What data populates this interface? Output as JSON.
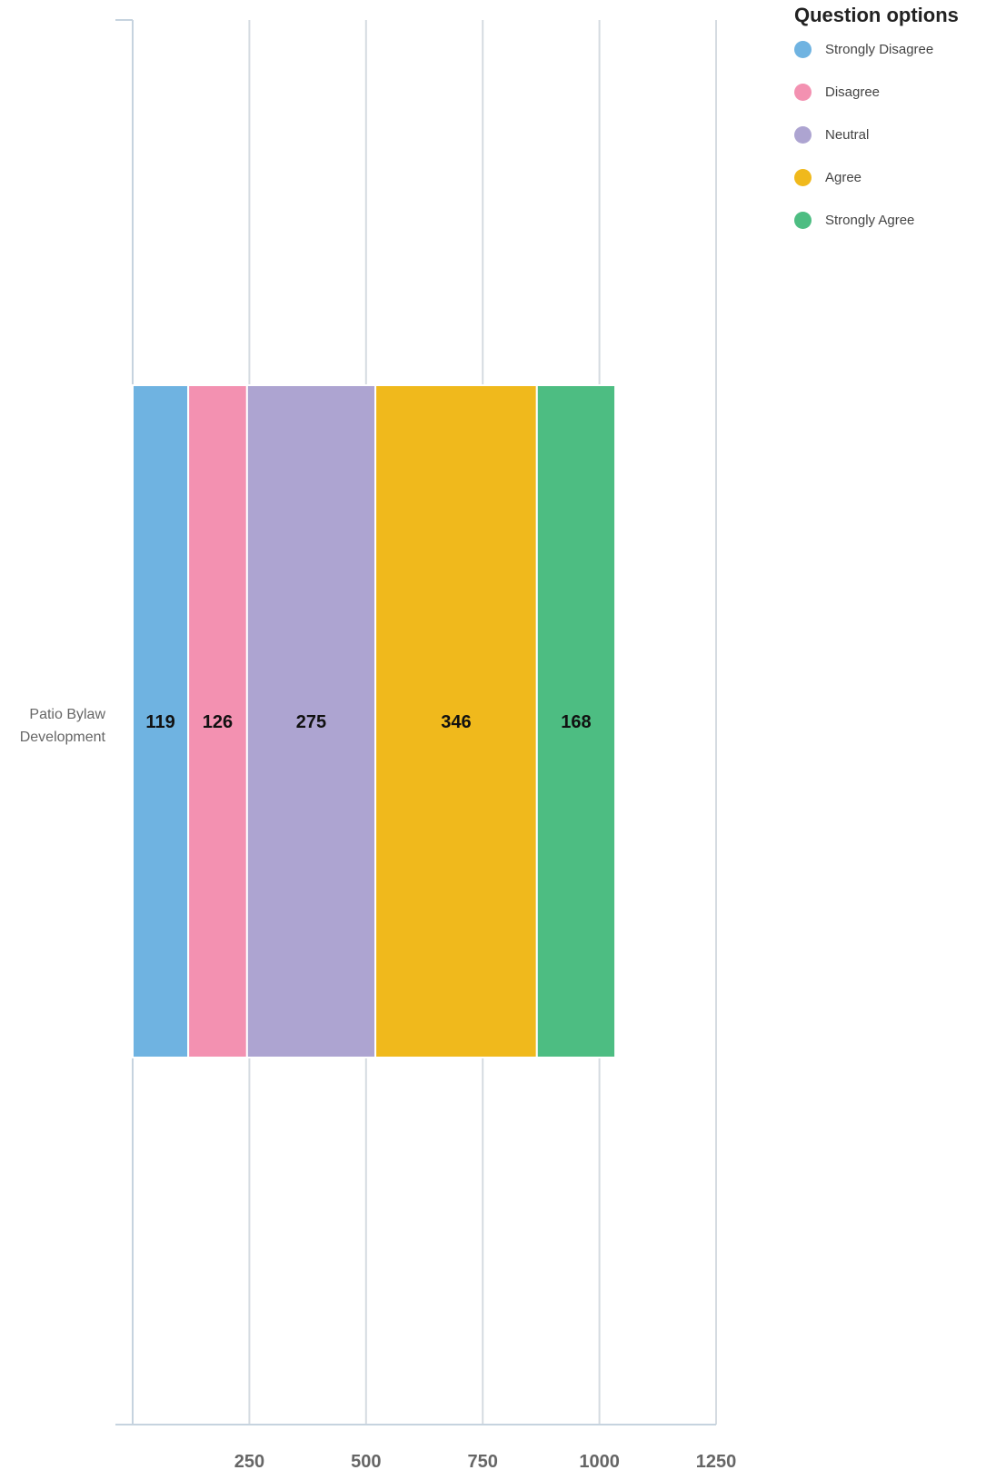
{
  "chart_data": {
    "type": "bar",
    "orientation": "horizontal",
    "stacked": true,
    "categories": [
      "Patio Bylaw Development"
    ],
    "series": [
      {
        "name": "Strongly Disagree",
        "values": [
          119
        ],
        "color": "#6fb3e1"
      },
      {
        "name": "Disagree",
        "values": [
          126
        ],
        "color": "#f391b1"
      },
      {
        "name": "Neutral",
        "values": [
          275
        ],
        "color": "#ada4d1"
      },
      {
        "name": "Agree",
        "values": [
          346
        ],
        "color": "#f0b91c"
      },
      {
        "name": "Strongly Agree",
        "values": [
          168
        ],
        "color": "#4dbd82"
      }
    ],
    "xlim": [
      0,
      1250
    ],
    "xticks": [
      250,
      500,
      750,
      1000,
      1250
    ],
    "grid": true,
    "legend_position": "top-right",
    "legend_title": "Question options",
    "data_labels": true
  },
  "colors": {
    "grid": "#d5dbe1",
    "axis": "#c6d3df",
    "tick_label": "#666666",
    "category_label": "#666666",
    "data_label": "#111111"
  }
}
